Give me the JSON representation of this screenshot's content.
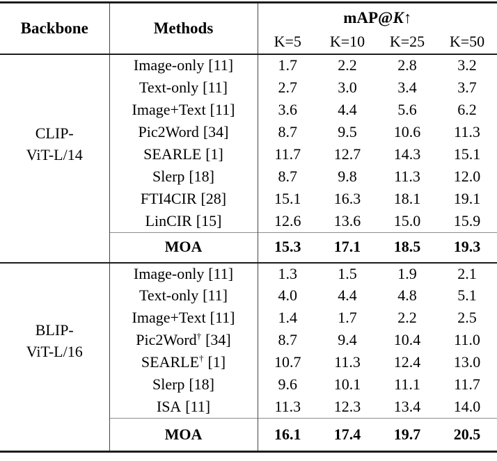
{
  "table": {
    "header": {
      "backbone": "Backbone",
      "methods": "Methods",
      "metric_prefix": "mAP@",
      "metric_k": "K",
      "metric_arrow": "↑",
      "k_labels": [
        "K=5",
        "K=10",
        "K=25",
        "K=50"
      ]
    },
    "sections": [
      {
        "backbone_line1": "CLIP-",
        "backbone_line2": "ViT-L/14",
        "rows": [
          {
            "name": "Image-only",
            "dagger": "",
            "cite": "[11]",
            "values": [
              "1.7",
              "2.2",
              "2.8",
              "3.2"
            ]
          },
          {
            "name": "Text-only",
            "dagger": "",
            "cite": "[11]",
            "values": [
              "2.7",
              "3.0",
              "3.4",
              "3.7"
            ]
          },
          {
            "name": "Image+Text",
            "dagger": "",
            "cite": "[11]",
            "values": [
              "3.6",
              "4.4",
              "5.6",
              "6.2"
            ]
          },
          {
            "name": "Pic2Word",
            "dagger": "",
            "cite": "[34]",
            "values": [
              "8.7",
              "9.5",
              "10.6",
              "11.3"
            ]
          },
          {
            "name": "SEARLE",
            "dagger": "",
            "cite": "[1]",
            "values": [
              "11.7",
              "12.7",
              "14.3",
              "15.1"
            ]
          },
          {
            "name": "Slerp",
            "dagger": "",
            "cite": "[18]",
            "values": [
              "8.7",
              "9.8",
              "11.3",
              "12.0"
            ]
          },
          {
            "name": "FTI4CIR",
            "dagger": "",
            "cite": "[28]",
            "values": [
              "15.1",
              "16.3",
              "18.1",
              "19.1"
            ]
          },
          {
            "name": "LinCIR",
            "dagger": "",
            "cite": "[15]",
            "values": [
              "12.6",
              "13.6",
              "15.0",
              "15.9"
            ]
          }
        ],
        "moa": {
          "label": "MOA",
          "values": [
            "15.3",
            "17.1",
            "18.5",
            "19.3"
          ]
        }
      },
      {
        "backbone_line1": "BLIP-",
        "backbone_line2": "ViT-L/16",
        "rows": [
          {
            "name": "Image-only",
            "dagger": "",
            "cite": "[11]",
            "values": [
              "1.3",
              "1.5",
              "1.9",
              "2.1"
            ]
          },
          {
            "name": "Text-only",
            "dagger": "",
            "cite": "[11]",
            "values": [
              "4.0",
              "4.4",
              "4.8",
              "5.1"
            ]
          },
          {
            "name": "Image+Text",
            "dagger": "",
            "cite": "[11]",
            "values": [
              "1.4",
              "1.7",
              "2.2",
              "2.5"
            ]
          },
          {
            "name": "Pic2Word",
            "dagger": "†",
            "cite": "[34]",
            "values": [
              "8.7",
              "9.4",
              "10.4",
              "11.0"
            ]
          },
          {
            "name": "SEARLE",
            "dagger": "†",
            "cite": "[1]",
            "values": [
              "10.7",
              "11.3",
              "12.4",
              "13.0"
            ]
          },
          {
            "name": "Slerp",
            "dagger": "",
            "cite": "[18]",
            "values": [
              "9.6",
              "10.1",
              "11.1",
              "11.7"
            ]
          },
          {
            "name": "ISA",
            "dagger": "",
            "cite": "[11]",
            "values": [
              "11.3",
              "12.3",
              "13.4",
              "14.0"
            ]
          }
        ],
        "moa": {
          "label": "MOA",
          "values": [
            "16.1",
            "17.4",
            "19.7",
            "20.5"
          ]
        }
      }
    ]
  }
}
